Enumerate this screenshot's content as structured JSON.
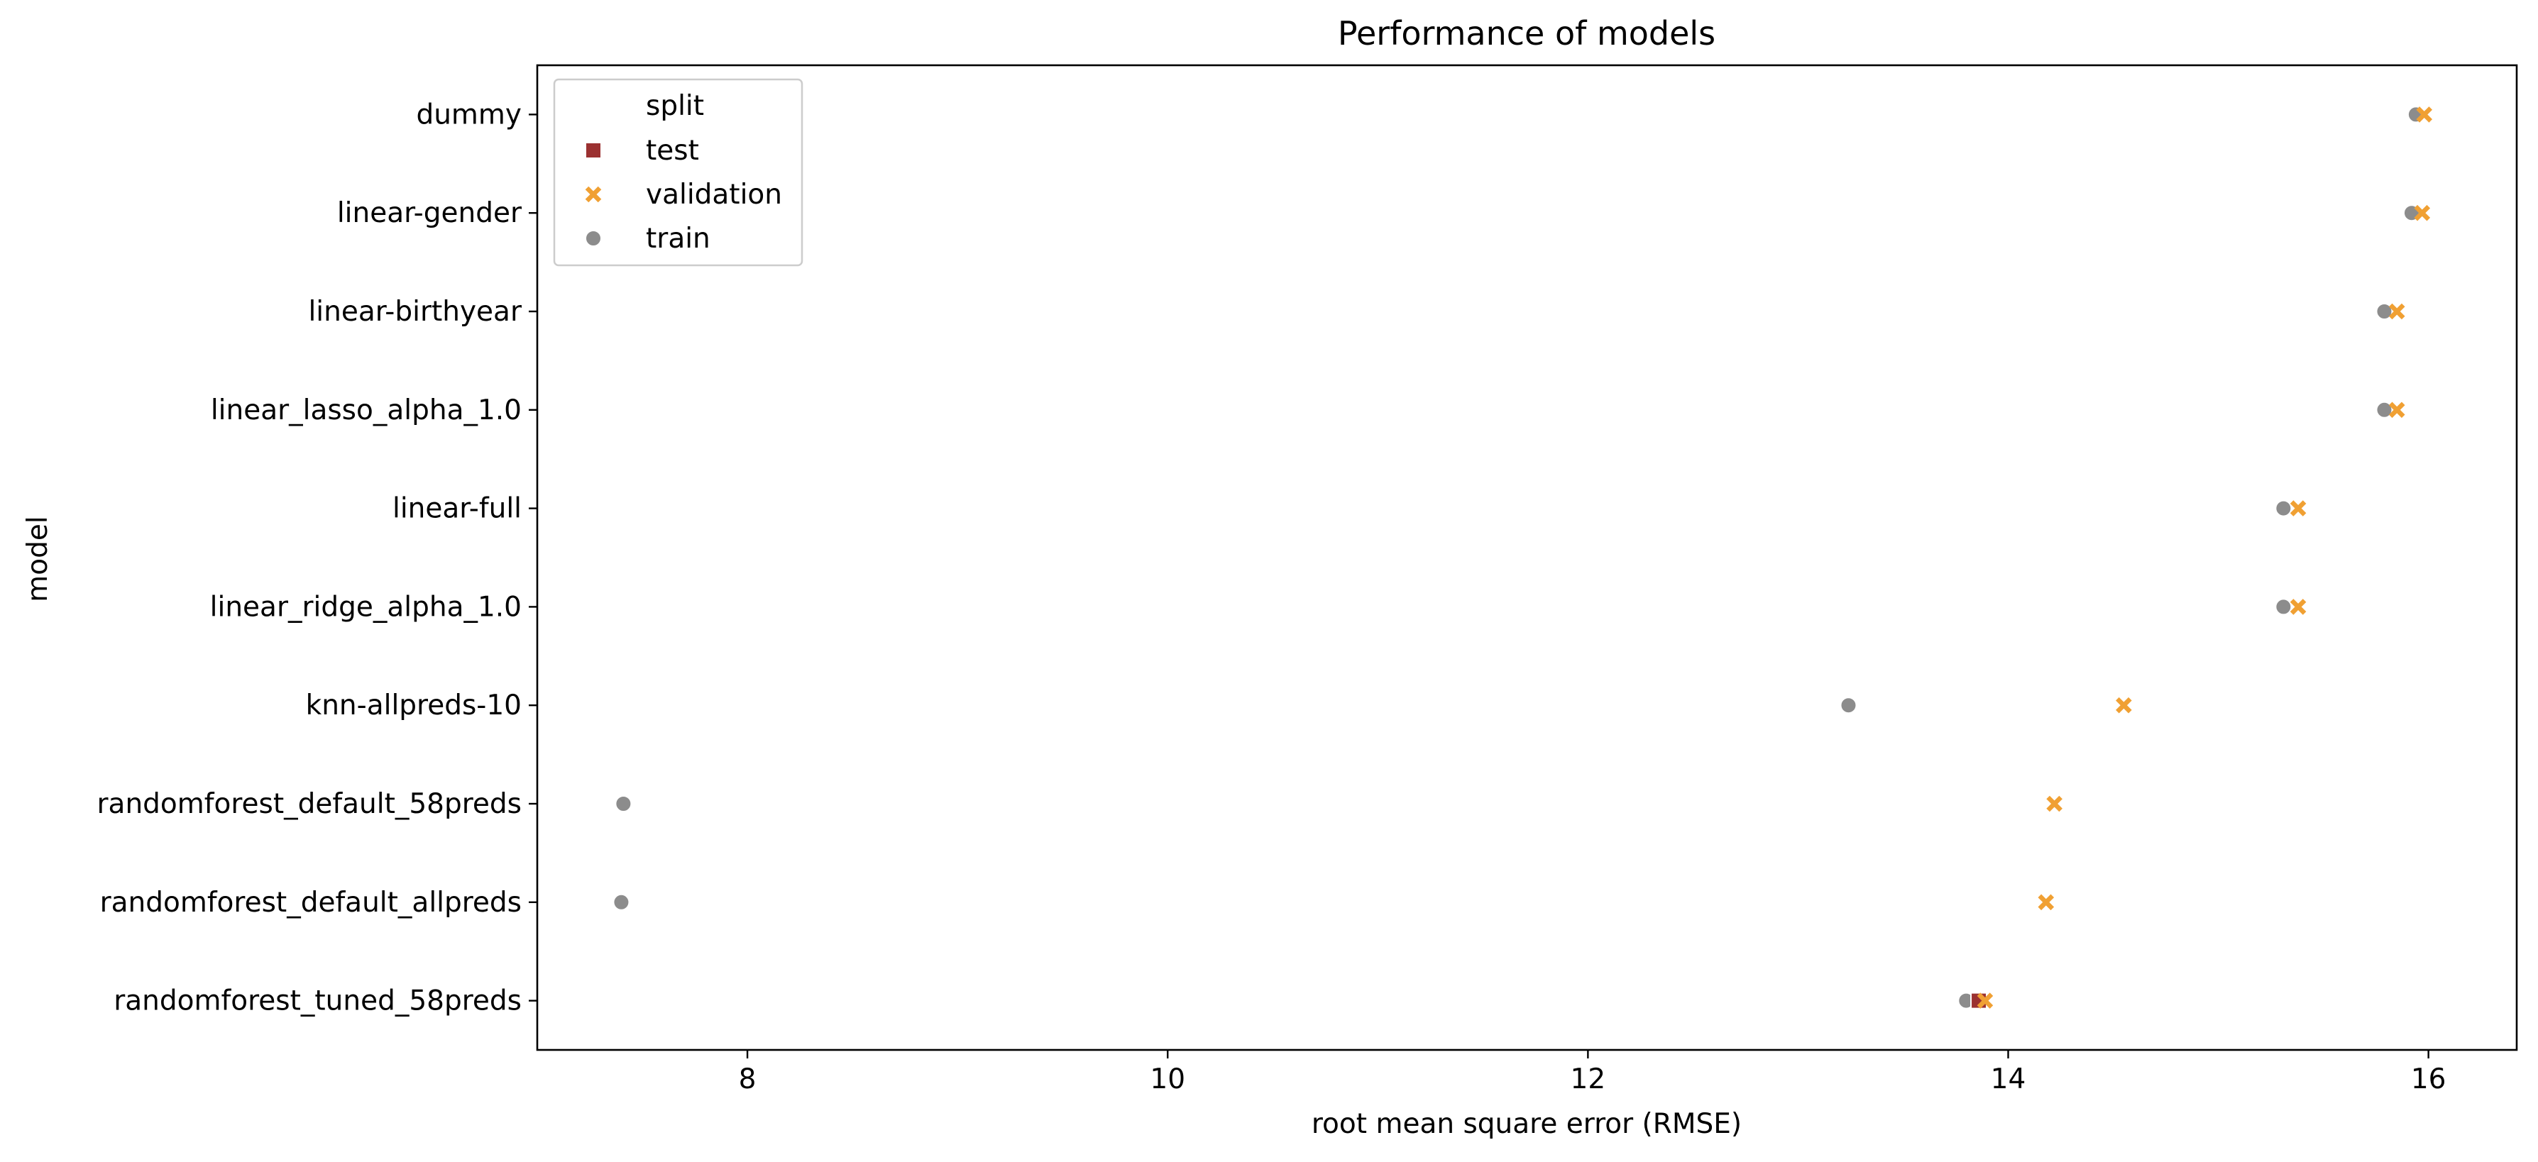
{
  "chart_data": {
    "type": "scatter",
    "title": "Performance of models",
    "xlabel": "root mean square error (RMSE)",
    "ylabel": "model",
    "xlim": [
      7.0,
      16.42
    ],
    "xticks": [
      8,
      10,
      12,
      14,
      16
    ],
    "xtick_labels": [
      "8",
      "10",
      "12",
      "14",
      "16"
    ],
    "categories": [
      "dummy",
      "linear-gender",
      "linear-birthyear",
      "linear_lasso_alpha_1.0",
      "linear-full",
      "linear_ridge_alpha_1.0",
      "knn-allpreds-10",
      "randomforest_default_58preds",
      "randomforest_default_allpreds",
      "randomforest_tuned_58preds"
    ],
    "grid": false,
    "legend": {
      "title": "split",
      "placement": "top-left",
      "entries": [
        "test",
        "validation",
        "train"
      ]
    },
    "series": [
      {
        "name": "test",
        "marker": "square",
        "color": "#9b3131",
        "values": [
          null,
          null,
          null,
          null,
          null,
          null,
          null,
          null,
          null,
          13.86
        ]
      },
      {
        "name": "validation",
        "marker": "x",
        "color": "#f0a033",
        "values": [
          15.98,
          15.97,
          15.85,
          15.85,
          15.38,
          15.38,
          14.55,
          14.22,
          14.18,
          13.89
        ]
      },
      {
        "name": "train",
        "marker": "circle",
        "color": "#8c8c8c",
        "values": [
          15.94,
          15.92,
          15.79,
          15.79,
          15.31,
          15.31,
          13.24,
          7.41,
          7.4,
          13.8
        ]
      }
    ]
  }
}
